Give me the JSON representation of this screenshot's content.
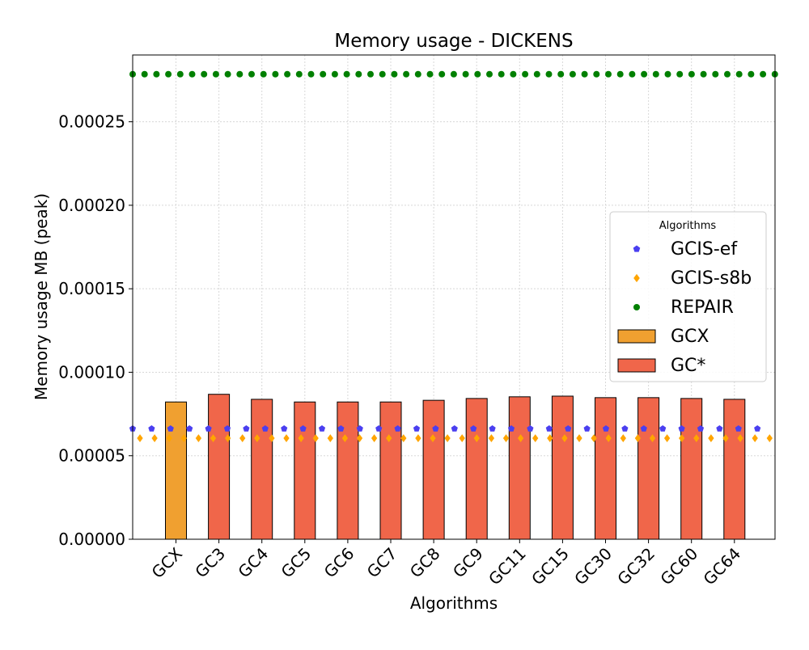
{
  "chart_data": {
    "type": "bar",
    "title": "Memory usage -  DICKENS",
    "xlabel": "Algorithms",
    "ylabel": "Memory usage MB (peak)",
    "categories": [
      "GCX",
      "GC3",
      "GC4",
      "GC5",
      "GC6",
      "GC7",
      "GC8",
      "GC9",
      "GC11",
      "GC15",
      "GC30",
      "GC32",
      "GC60",
      "GC64"
    ],
    "ylim": [
      0,
      0.00029
    ],
    "yticks": [
      {
        "value": 0,
        "label": "0.00000"
      },
      {
        "value": 5e-05,
        "label": "0.00005"
      },
      {
        "value": 0.0001,
        "label": "0.00010"
      },
      {
        "value": 0.00015,
        "label": "0.00015"
      },
      {
        "value": 0.0002,
        "label": "0.00020"
      },
      {
        "value": 0.00025,
        "label": "0.00025"
      }
    ],
    "grid": true,
    "bar_series": [
      {
        "name": "GCX",
        "color": "#f0a030",
        "values": [
          8.22e-05,
          null,
          null,
          null,
          null,
          null,
          null,
          null,
          null,
          null,
          null,
          null,
          null,
          null
        ]
      },
      {
        "name": "GC*",
        "color": "#f0664a",
        "values": [
          null,
          8.68e-05,
          8.38e-05,
          8.22e-05,
          8.22e-05,
          8.22e-05,
          8.32e-05,
          8.43e-05,
          8.53e-05,
          8.57e-05,
          8.48e-05,
          8.48e-05,
          8.43e-05,
          8.38e-05
        ]
      }
    ],
    "reference_lines": [
      {
        "name": "GCIS-ef",
        "value": 6.62e-05,
        "color": "#4a3ff0",
        "marker": "pentagon"
      },
      {
        "name": "GCIS-s8b",
        "value": 6.05e-05,
        "color": "#ffa500",
        "marker": "diamond"
      },
      {
        "name": "REPAIR",
        "value": 0.0002785,
        "color": "#008000",
        "marker": "circle"
      }
    ],
    "legend": {
      "title": "Algorithms",
      "position": "center-right",
      "entries": [
        "GCIS-ef",
        "GCIS-s8b",
        "REPAIR",
        "GCX",
        "GC*"
      ]
    }
  }
}
